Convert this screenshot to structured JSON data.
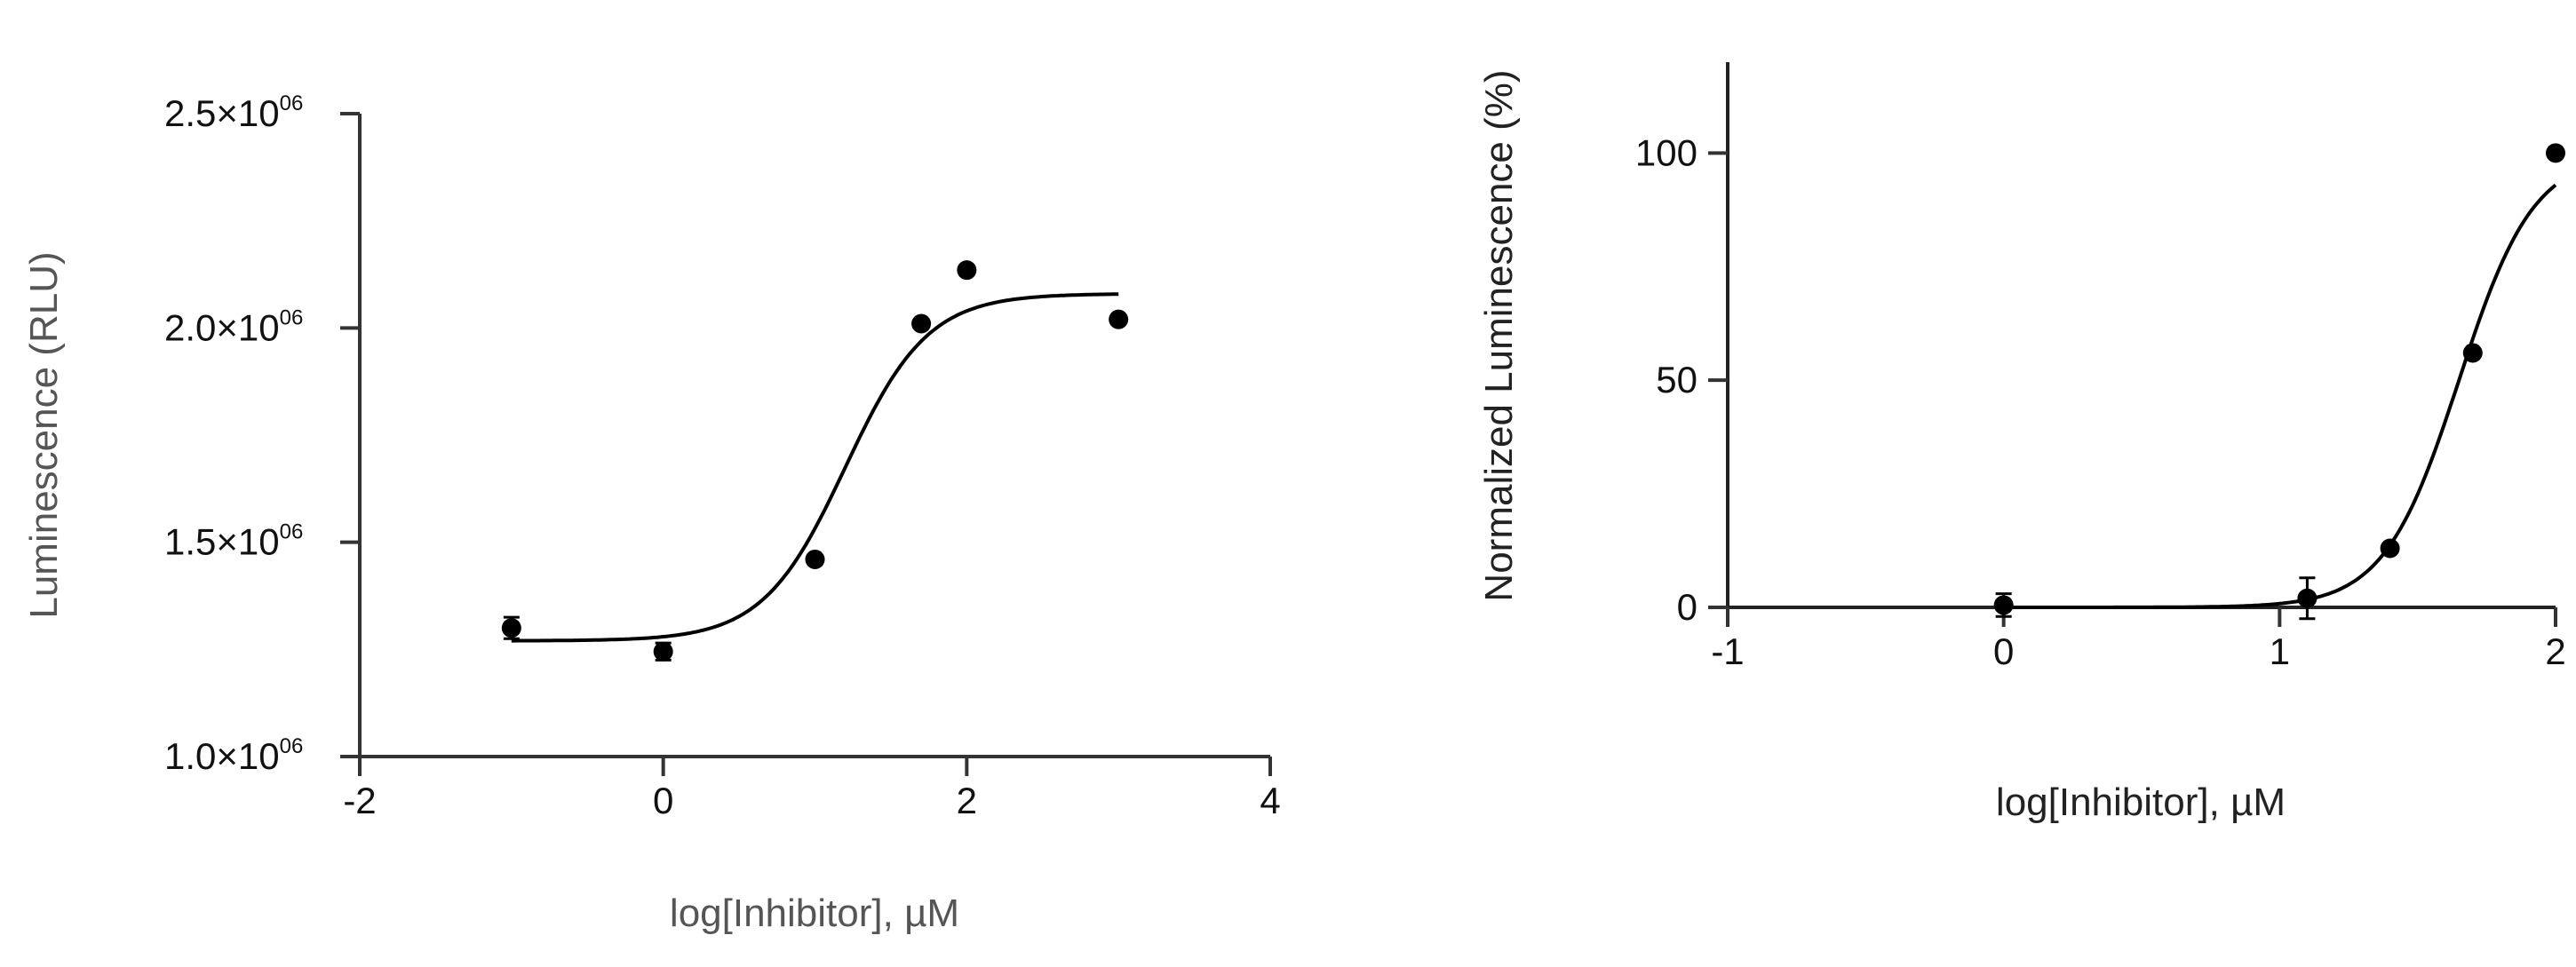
{
  "chart_data": [
    {
      "type": "scatter",
      "title": "",
      "xlabel": "log[Inhibitor], µM",
      "ylabel": "Luminescence (RLU)",
      "xlim": [
        -2,
        4
      ],
      "ylim": [
        1000000,
        2500000
      ],
      "x_ticks": [
        "-2",
        "0",
        "2",
        "4"
      ],
      "x_tick_values": [
        -2,
        0,
        2,
        4
      ],
      "y_ticks": [
        {
          "base": "1.0×10",
          "exp": "06"
        },
        {
          "base": "1.5×10",
          "exp": "06"
        },
        {
          "base": "2.0×10",
          "exp": "06"
        },
        {
          "base": "2.5×10",
          "exp": "06"
        }
      ],
      "y_tick_values": [
        1000000,
        1500000,
        2000000,
        2500000
      ],
      "grid": false,
      "legend": "none",
      "series": [
        {
          "marker": "circle",
          "points": [
            {
              "x": -1.0,
              "y": 1300000,
              "err": 25000
            },
            {
              "x": 0.0,
              "y": 1245000,
              "err": 20000
            },
            {
              "x": 1.0,
              "y": 1460000,
              "err": 10000
            },
            {
              "x": 1.7,
              "y": 2010000,
              "err": 10000
            },
            {
              "x": 2.0,
              "y": 2135000,
              "err": 0
            },
            {
              "x": 3.0,
              "y": 2020000,
              "err": 0
            }
          ],
          "fit": {
            "model": "sigmoidal dose-response",
            "bottom": 1270000,
            "top": 2080000,
            "logEC50": 1.2,
            "hill": 1.6,
            "x_range": [
              -1,
              3
            ]
          }
        }
      ],
      "colors": {
        "marker": "#000000",
        "curve": "#000000",
        "axis": "#333333"
      }
    },
    {
      "type": "scatter",
      "title": "",
      "xlabel": "log[Inhibitor], µM",
      "ylabel": "Normalized Luminescence (%)",
      "xlim": [
        -1,
        2
      ],
      "ylim": [
        0,
        120
      ],
      "x_ticks": [
        "-1",
        "0",
        "1",
        "2"
      ],
      "x_tick_values": [
        -1,
        0,
        1,
        2
      ],
      "y_ticks": [
        "0",
        "50",
        "100"
      ],
      "y_tick_values": [
        0,
        50,
        100
      ],
      "grid": false,
      "legend": "none",
      "series": [
        {
          "marker": "circle",
          "points": [
            {
              "x": 0.0,
              "y": 0.5,
              "err": 2.5
            },
            {
              "x": 1.1,
              "y": 2.0,
              "err": 4.5
            },
            {
              "x": 1.4,
              "y": 13,
              "err": 0
            },
            {
              "x": 1.7,
              "y": 56,
              "err": 0
            },
            {
              "x": 2.0,
              "y": 100,
              "err": 0
            }
          ],
          "fit": {
            "model": "sigmoidal dose-response",
            "bottom": 0,
            "top": 100,
            "logEC50": 1.65,
            "hill": 3.2,
            "x_range": [
              0,
              2
            ]
          }
        }
      ],
      "colors": {
        "marker": "#000000",
        "curve": "#000000",
        "axis": "#222222"
      }
    }
  ]
}
